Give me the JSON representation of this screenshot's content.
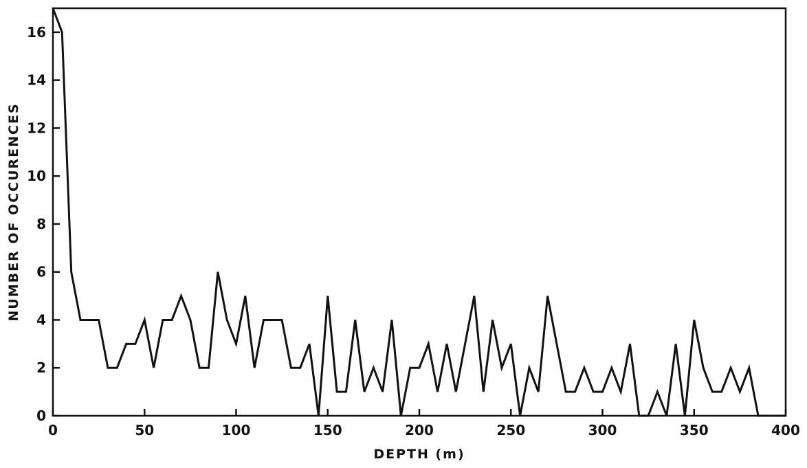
{
  "chart_data": {
    "type": "line",
    "title": "",
    "xlabel": "DEPTH (m)",
    "ylabel": "NUMBER OF OCCURENCES",
    "xlim": [
      0,
      400
    ],
    "ylim": [
      0,
      17
    ],
    "xticks": [
      0,
      50,
      100,
      150,
      200,
      250,
      300,
      350,
      400
    ],
    "yticks": [
      0,
      2,
      4,
      6,
      8,
      10,
      12,
      14,
      16
    ],
    "xtick_labels": [
      "0",
      "50",
      "100",
      "150",
      "200",
      "250",
      "300",
      "350",
      "400"
    ],
    "ytick_labels": [
      "0",
      "2",
      "4",
      "6",
      "8",
      "10",
      "12",
      "14",
      "16"
    ],
    "grid": false,
    "line_color": "#111111",
    "series": [
      {
        "x": [
          0,
          5,
          10,
          15,
          20,
          25,
          30,
          35,
          40,
          45,
          50,
          55,
          60,
          65,
          70,
          75,
          80,
          85,
          90,
          95,
          100,
          105,
          110,
          115,
          120,
          125,
          130,
          135,
          140,
          145,
          150,
          155,
          160,
          165,
          170,
          175,
          180,
          185,
          190,
          195,
          200,
          205,
          210,
          215,
          220,
          225,
          230,
          235,
          240,
          245,
          250,
          255,
          260,
          265,
          270,
          275,
          280,
          285,
          290,
          295,
          300,
          305,
          310,
          315,
          320,
          325,
          330,
          335,
          340,
          345,
          350,
          355,
          360,
          365,
          370,
          375,
          380,
          385,
          390,
          395,
          400
        ],
        "y": [
          17,
          16,
          6,
          4,
          4,
          4,
          2,
          2,
          3,
          3,
          4,
          2,
          4,
          4,
          5,
          4,
          2,
          2,
          6,
          4,
          3,
          5,
          2,
          4,
          4,
          4,
          2,
          2,
          3,
          0,
          5,
          1,
          1,
          4,
          1,
          2,
          1,
          4,
          0,
          2,
          2,
          3,
          1,
          3,
          1,
          3,
          5,
          1,
          4,
          2,
          3,
          0,
          2,
          1,
          5,
          3,
          1,
          1,
          2,
          1,
          1,
          2,
          1,
          3,
          0,
          0,
          1,
          0,
          3,
          0,
          4,
          2,
          1,
          1,
          2,
          1,
          2,
          0,
          0,
          0,
          0
        ]
      }
    ]
  }
}
